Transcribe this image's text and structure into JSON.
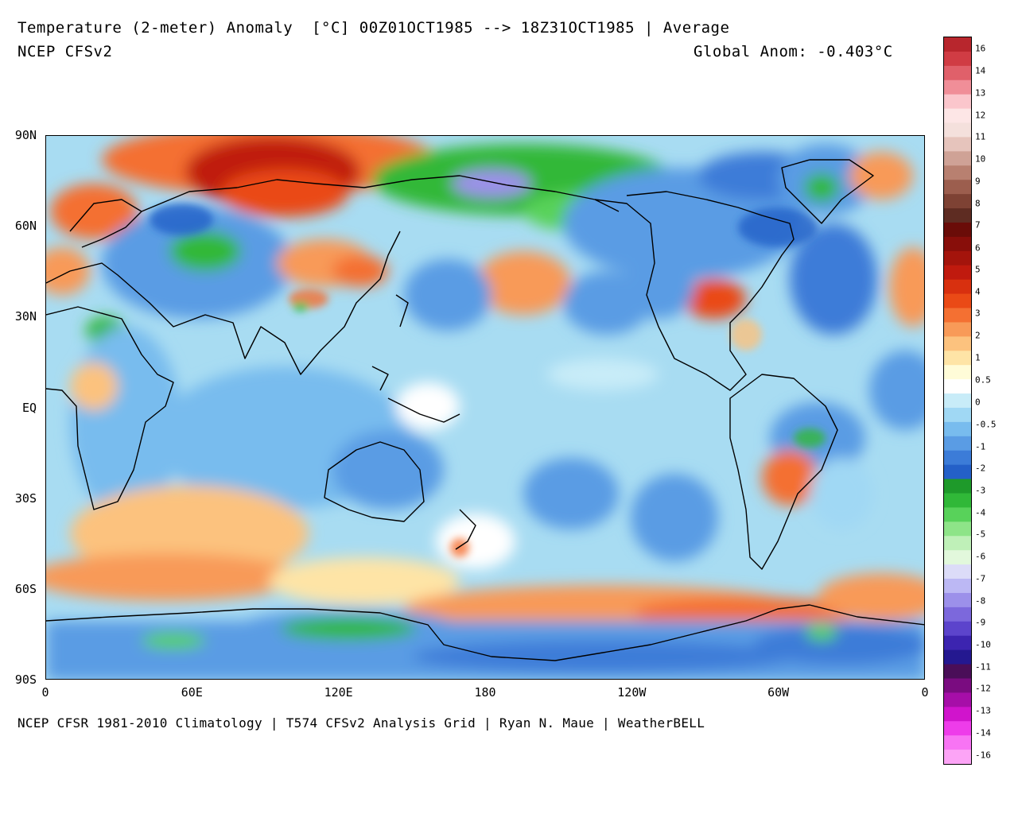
{
  "header": {
    "title": "Temperature (2-meter) Anomaly  [°C] 00Z01OCT1985 --> 18Z31OCT1985 | Average",
    "model": "NCEP CFSv2",
    "global_anomaly": "Global Anom: -0.403°C"
  },
  "footer": "NCEP CFSR 1981-2010 Climatology | T574 CFSv2 Analysis Grid | Ryan N. Maue | WeatherBELL",
  "map": {
    "projection": "equirectangular",
    "lat_labels": [
      "90N",
      "60N",
      "30N",
      "EQ",
      "30S",
      "60S",
      "90S"
    ],
    "lon_labels": [
      "0",
      "60E",
      "120E",
      "180",
      "120W",
      "60W",
      "0"
    ]
  },
  "colorbar": {
    "labels": [
      "16",
      "14",
      "13",
      "12",
      "11",
      "10",
      "9",
      "8",
      "7",
      "6",
      "5",
      "4",
      "3",
      "2",
      "1",
      "0.5",
      "0",
      "-0.5",
      "-1",
      "-2",
      "-3",
      "-4",
      "-5",
      "-6",
      "-7",
      "-8",
      "-9",
      "-10",
      "-11",
      "-12",
      "-13",
      "-14",
      "-16"
    ],
    "colors": [
      "#b8262d",
      "#d03c44",
      "#e0606a",
      "#f08e98",
      "#fbc6cc",
      "#fde6e6",
      "#f4e0dc",
      "#e6c4bc",
      "#cfa296",
      "#b88070",
      "#9c5e4e",
      "#7e4234",
      "#5e2c22",
      "#6a0c08",
      "#880e0a",
      "#a4140c",
      "#c01a0e",
      "#d8300f",
      "#ea4a16",
      "#f47032",
      "#f89a58",
      "#fcc27e",
      "#fee4a6",
      "#fffcd8",
      "#ffffff",
      "#c8ecf8",
      "#a0d8f4",
      "#78bcee",
      "#5a9ce4",
      "#3c7cd8",
      "#2460c8",
      "#1e9a2a",
      "#30b838",
      "#58d25a",
      "#8ee488",
      "#bff0b8",
      "#e2f8dc",
      "#dcdcf8",
      "#bcb8f4",
      "#9c90ea",
      "#7c68dc",
      "#5c44cc",
      "#3c24b0",
      "#241890",
      "#4a0e58",
      "#7a0c80",
      "#a60ea8",
      "#d014cc",
      "#ee3cea",
      "#f874f4",
      "#fca4f6"
    ]
  }
}
